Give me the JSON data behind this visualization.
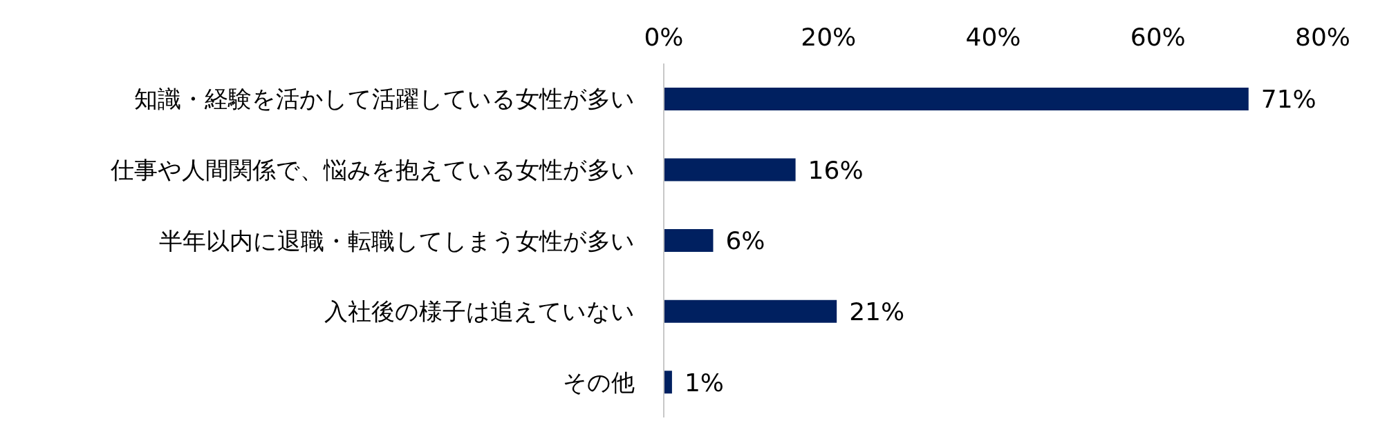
{
  "chart_data": {
    "type": "bar",
    "orientation": "horizontal",
    "categories": [
      "知識・経験を活かして活躍している女性が多い",
      "仕事や人間関係で、悩みを抱えている女性が多い",
      "半年以内に退職・転職してしまう女性が多い",
      "入社後の様子は追えていない",
      "その他"
    ],
    "values": [
      71,
      16,
      6,
      21,
      1
    ],
    "value_labels": [
      "71%",
      "16%",
      "6%",
      "21%",
      "1%"
    ],
    "color": "#002060",
    "xlim": [
      0,
      80
    ],
    "xticks": [
      {
        "value": 0,
        "label": "0%"
      },
      {
        "value": 20,
        "label": "20%"
      },
      {
        "value": 40,
        "label": "40%"
      },
      {
        "value": 60,
        "label": "60%"
      },
      {
        "value": 80,
        "label": "80%"
      }
    ]
  }
}
